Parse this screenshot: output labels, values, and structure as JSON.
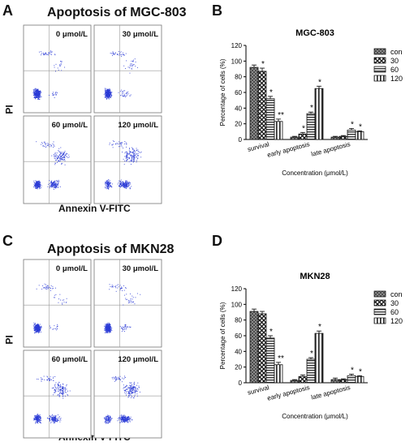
{
  "panels": [
    {
      "id": "A",
      "letter": "A",
      "title": "Apoptosis of MGC-803",
      "ylabel": "PI",
      "xlabel": "Annexin V-FITC",
      "plots": [
        {
          "conc": "0 μmol/L"
        },
        {
          "conc": "30 μmol/L"
        },
        {
          "conc": "60 μmol/L"
        },
        {
          "conc": "120 μmol/L"
        }
      ]
    },
    {
      "id": "C",
      "letter": "C",
      "title": "Apoptosis of MKN28",
      "ylabel": "PI",
      "xlabel": "Annexin V-FITC",
      "plots": [
        {
          "conc": "0 μmol/L"
        },
        {
          "conc": "30 μmol/L"
        },
        {
          "conc": "60 μmol/L"
        },
        {
          "conc": "120 μmol/L"
        }
      ]
    }
  ],
  "colors": {
    "scatter": "#2b3bd6",
    "frame": "#777777",
    "bar_outline": "#111111"
  },
  "chart_data": [
    {
      "letter": "B",
      "type": "bar",
      "title": "MGC-803",
      "xlabel": "Concentration (μmol/L)",
      "ylabel": "Percentage of cells (%)",
      "ylim": [
        0,
        120
      ],
      "yticks": [
        0,
        20,
        40,
        60,
        80,
        100,
        120
      ],
      "categories": [
        "survival",
        "early apoptosis",
        "late apoptosis"
      ],
      "series": [
        {
          "name": "con",
          "values": [
            92,
            3,
            3
          ],
          "errors": [
            3,
            1,
            1
          ],
          "stars": [
            "",
            "",
            ""
          ]
        },
        {
          "name": "30",
          "values": [
            87,
            7,
            4
          ],
          "errors": [
            4,
            2,
            1
          ],
          "stars": [
            "*",
            "*",
            ""
          ]
        },
        {
          "name": "60",
          "values": [
            52,
            33,
            12
          ],
          "errors": [
            3,
            2,
            2
          ],
          "stars": [
            "*",
            "*",
            "*"
          ]
        },
        {
          "name": "120",
          "values": [
            23,
            65,
            10
          ],
          "errors": [
            3,
            3,
            1
          ],
          "stars": [
            "**",
            "*",
            "*"
          ]
        }
      ],
      "legend": "right"
    },
    {
      "letter": "D",
      "type": "bar",
      "title": "MKN28",
      "xlabel": "Concentration (μmol/L)",
      "ylabel": "Percentage of cells (%)",
      "ylim": [
        0,
        120
      ],
      "yticks": [
        0,
        20,
        40,
        60,
        80,
        100,
        120
      ],
      "categories": [
        "survival",
        "early apoptosis",
        "late apoptosis"
      ],
      "series": [
        {
          "name": "con",
          "values": [
            91,
            3,
            4
          ],
          "errors": [
            3,
            1,
            2
          ],
          "stars": [
            "",
            "",
            ""
          ]
        },
        {
          "name": "30",
          "values": [
            88,
            8,
            4
          ],
          "errors": [
            3,
            2,
            1
          ],
          "stars": [
            "",
            "",
            ""
          ]
        },
        {
          "name": "60",
          "values": [
            57,
            30,
            9
          ],
          "errors": [
            3,
            2,
            2
          ],
          "stars": [
            "*",
            "*",
            "*"
          ]
        },
        {
          "name": "120",
          "values": [
            23,
            63,
            8
          ],
          "errors": [
            3,
            3,
            1
          ],
          "stars": [
            "**",
            "*",
            "*"
          ]
        }
      ],
      "legend": "right"
    }
  ]
}
